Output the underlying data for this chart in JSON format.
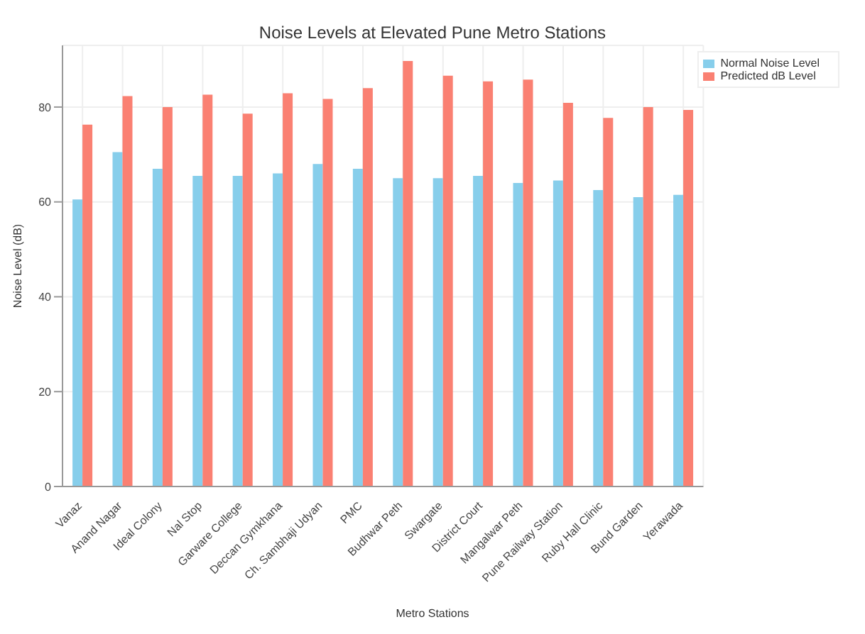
{
  "chart_data": {
    "type": "bar",
    "title": "Noise Levels at Elevated Pune Metro Stations",
    "xlabel": "Metro Stations",
    "ylabel": "Noise Level (dB)",
    "categories": [
      "Vanaz",
      "Anand Nagar",
      "Ideal Colony",
      "Nal Stop",
      "Garware College",
      "Deccan Gymkhana",
      "Ch. Sambhaji Udyan",
      "PMC",
      "Budhwar Peth",
      "Swargate",
      "District Court",
      "Mangalwar Peth",
      "Pune Railway Station",
      "Ruby Hall Clinic",
      "Bund Garden",
      "Yerawada"
    ],
    "series": [
      {
        "name": "Normal Noise Level",
        "color": "#87ceeb",
        "values": [
          60.5,
          70.5,
          67,
          65.5,
          65.5,
          66,
          68,
          67,
          65,
          65,
          65.5,
          64,
          64.5,
          62.5,
          61,
          61.5
        ]
      },
      {
        "name": "Predicted dB Level",
        "color": "#fa8072",
        "values": [
          76.3,
          82.3,
          80,
          82.6,
          78.6,
          82.9,
          81.7,
          84,
          89.7,
          86.6,
          85.4,
          85.8,
          80.9,
          77.7,
          80,
          79.4
        ]
      }
    ],
    "ylim": [
      0,
      93
    ],
    "yticks": [
      0,
      20,
      40,
      60,
      80
    ],
    "grid": true,
    "legend": "top right"
  }
}
